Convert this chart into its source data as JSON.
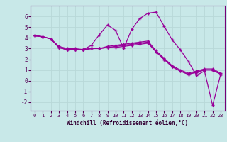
{
  "xlabel": "Windchill (Refroidissement éolien,°C)",
  "xlim": [
    -0.5,
    23.5
  ],
  "ylim": [
    -2.8,
    7.0
  ],
  "yticks": [
    -2,
    -1,
    0,
    1,
    2,
    3,
    4,
    5,
    6
  ],
  "xticks": [
    0,
    1,
    2,
    3,
    4,
    5,
    6,
    7,
    8,
    9,
    10,
    11,
    12,
    13,
    14,
    15,
    16,
    17,
    18,
    19,
    20,
    21,
    22,
    23
  ],
  "bg_color": "#c8e8e8",
  "grid_color": "#aacccc",
  "line_color": "#990099",
  "series": [
    [
      4.2,
      4.1,
      3.9,
      3.1,
      2.9,
      2.9,
      2.9,
      3.0,
      3.0,
      3.1,
      3.1,
      3.2,
      3.3,
      3.4,
      3.5,
      2.7,
      2.0,
      1.3,
      0.9,
      0.6,
      0.8,
      1.0,
      1.0,
      0.6
    ],
    [
      4.2,
      4.1,
      3.9,
      3.2,
      3.0,
      3.0,
      2.9,
      3.3,
      4.3,
      5.2,
      4.7,
      3.0,
      4.8,
      5.8,
      6.3,
      6.4,
      5.1,
      3.8,
      2.9,
      1.8,
      0.5,
      0.9,
      -2.3,
      0.6
    ],
    [
      4.2,
      4.1,
      3.9,
      3.1,
      2.9,
      2.9,
      2.9,
      3.0,
      3.0,
      3.2,
      3.3,
      3.4,
      3.5,
      3.6,
      3.7,
      2.8,
      2.1,
      1.4,
      1.0,
      0.7,
      0.9,
      1.1,
      1.1,
      0.7
    ],
    [
      4.2,
      4.1,
      3.9,
      3.1,
      2.9,
      2.9,
      2.9,
      3.0,
      3.0,
      3.1,
      3.2,
      3.3,
      3.4,
      3.5,
      3.6,
      2.7,
      2.0,
      1.3,
      0.9,
      0.6,
      0.8,
      1.0,
      1.0,
      0.6
    ]
  ]
}
